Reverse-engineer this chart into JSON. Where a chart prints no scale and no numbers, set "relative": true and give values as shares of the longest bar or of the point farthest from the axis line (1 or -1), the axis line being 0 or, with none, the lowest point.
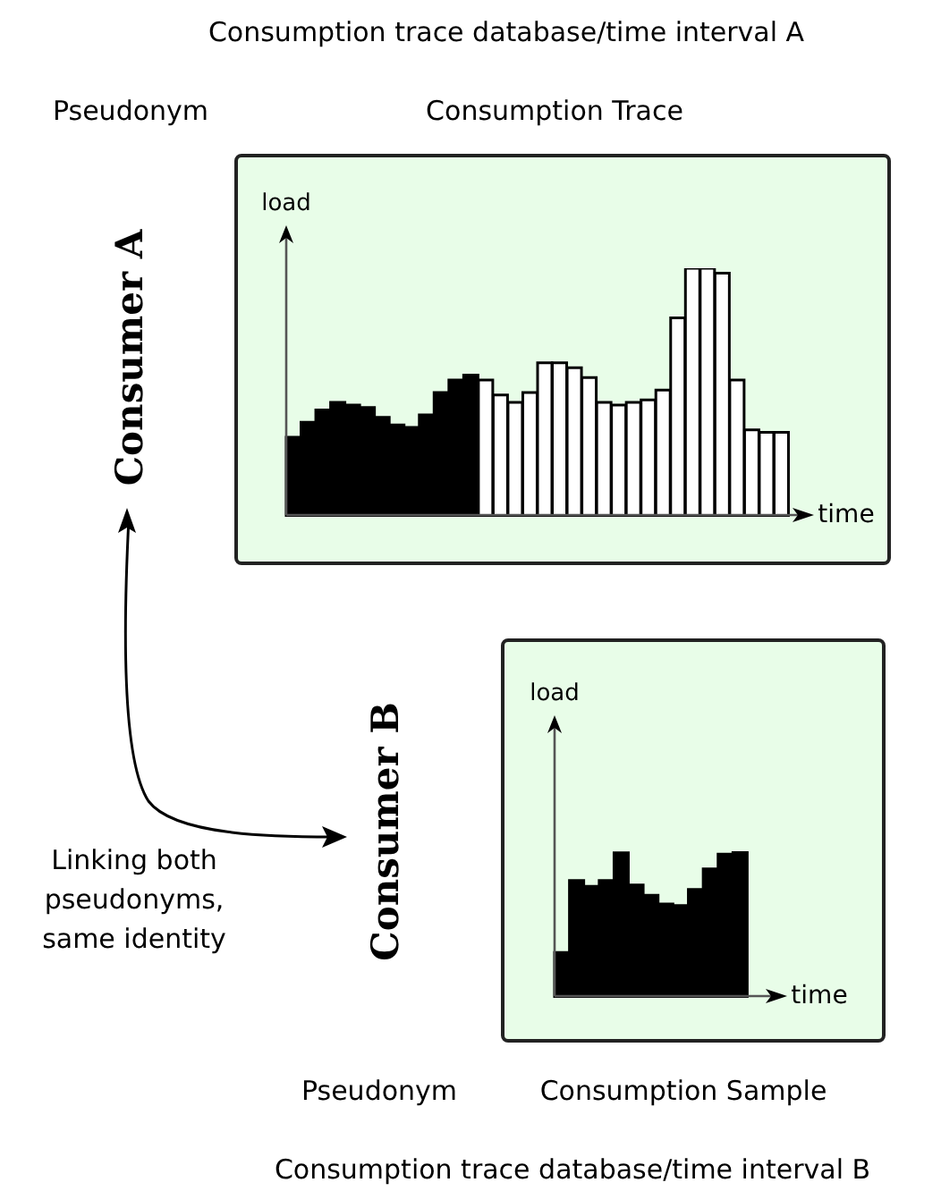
{
  "chart_data": [
    {
      "type": "bar",
      "relative": true,
      "title": "Consumption trace database/time interval A",
      "xlabel": "time",
      "ylabel": "load",
      "annotations": [
        "Pseudonym",
        "Consumption Trace",
        "Consumer A",
        "Linking both pseudonyms, same identity"
      ],
      "categories": [
        null,
        null,
        null,
        null,
        null,
        null,
        null,
        null,
        null,
        null,
        null,
        null,
        null,
        null,
        null,
        null,
        null,
        null,
        null,
        null,
        null,
        null,
        null,
        null,
        null,
        null,
        null,
        null,
        null,
        null,
        null,
        null,
        null,
        null
      ],
      "values": [
        0.32,
        0.38,
        0.43,
        0.46,
        0.45,
        0.44,
        0.4,
        0.37,
        0.36,
        0.41,
        0.5,
        0.55,
        0.57,
        0.55,
        0.49,
        0.46,
        0.5,
        0.62,
        0.62,
        0.6,
        0.56,
        0.46,
        0.45,
        0.46,
        0.47,
        0.51,
        0.8,
        1,
        1,
        0.98,
        0.55,
        0.35,
        0.34,
        0.34
      ],
      "colors": [
        "#000000",
        "#000000",
        "#000000",
        "#000000",
        "#000000",
        "#000000",
        "#000000",
        "#000000",
        "#000000",
        "#000000",
        "#000000",
        "#000000",
        "#000000",
        "#ffffff",
        "#ffffff",
        "#ffffff",
        "#ffffff",
        "#ffffff",
        "#ffffff",
        "#ffffff",
        "#ffffff",
        "#ffffff",
        "#ffffff",
        "#ffffff",
        "#ffffff",
        "#ffffff",
        "#ffffff",
        "#ffffff",
        "#ffffff",
        "#ffffff",
        "#ffffff",
        "#ffffff",
        "#ffffff",
        "#ffffff"
      ]
    },
    {
      "type": "bar",
      "relative": true,
      "title": "Consumption trace database/time interval B",
      "xlabel": "time",
      "ylabel": "load",
      "annotations": [
        "Pseudonym",
        "Consumption Sample",
        "Consumer B"
      ],
      "categories": [
        null,
        null,
        null,
        null,
        null,
        null,
        null,
        null,
        null,
        null,
        null,
        null,
        null
      ],
      "values": [
        0.31,
        0.8,
        0.76,
        0.8,
        0.99,
        0.77,
        0.7,
        0.64,
        0.63,
        0.74,
        0.88,
        0.98,
        1
      ],
      "colors": [
        "#000000",
        "#000000",
        "#000000",
        "#000000",
        "#000000",
        "#000000",
        "#000000",
        "#000000",
        "#000000",
        "#000000",
        "#000000",
        "#000000",
        "#000000"
      ]
    }
  ]
}
